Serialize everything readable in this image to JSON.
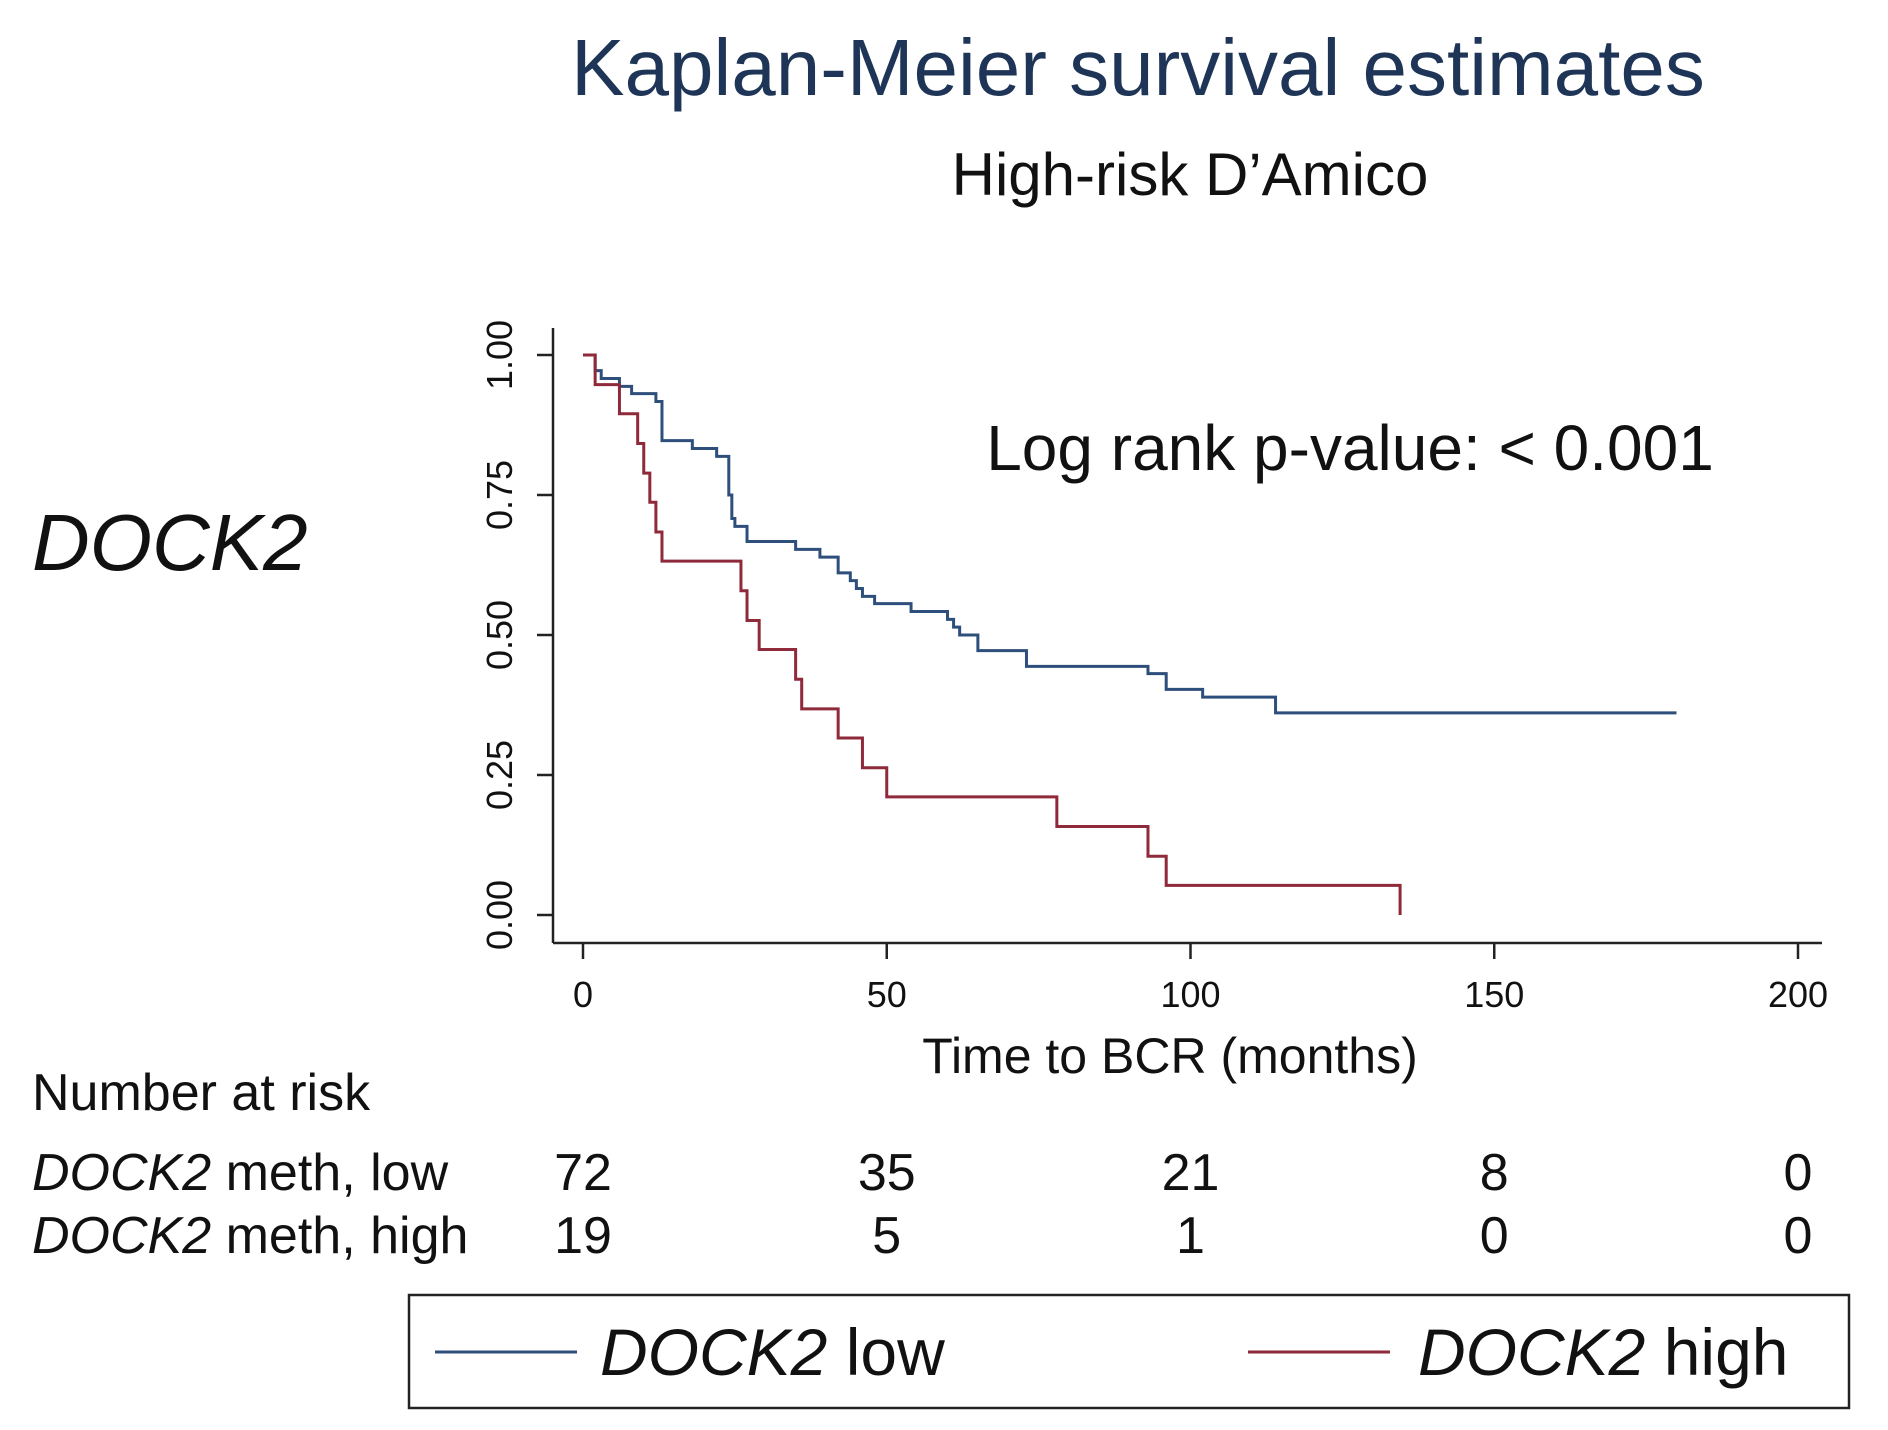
{
  "chart_data": {
    "type": "line",
    "title": "Kaplan-Meier survival estimates",
    "subtitle": "High-risk D’Amico",
    "gene_label": "DOCK2",
    "xlabel": "Time to BCR (months)",
    "ylabel": "",
    "xlim": [
      0,
      200
    ],
    "ylim": [
      0,
      1
    ],
    "x_ticks": [
      "0",
      "50",
      "100",
      "150",
      "200"
    ],
    "y_ticks": [
      "0.00",
      "0.25",
      "0.50",
      "0.75",
      "1.00"
    ],
    "grid": false,
    "annotation": "Log rank p-value: < 0.001",
    "series": [
      {
        "name": "DOCK2 low",
        "color": "#2e4f7c",
        "x": [
          0,
          2,
          3,
          6,
          8,
          12,
          13,
          18,
          22,
          24,
          24.5,
          25,
          27,
          35,
          39,
          42,
          44,
          45,
          46,
          48,
          54,
          60,
          61,
          62,
          65,
          73,
          93,
          96,
          102,
          114,
          180
        ],
        "y": [
          1.0,
          0.972,
          0.958,
          0.944,
          0.931,
          0.917,
          0.847,
          0.833,
          0.819,
          0.75,
          0.708,
          0.694,
          0.667,
          0.653,
          0.639,
          0.611,
          0.597,
          0.583,
          0.569,
          0.556,
          0.542,
          0.528,
          0.514,
          0.5,
          0.472,
          0.444,
          0.431,
          0.403,
          0.389,
          0.361,
          0.361
        ]
      },
      {
        "name": "DOCK2 high",
        "color": "#8e2a3a",
        "x": [
          0,
          2,
          6,
          9,
          10,
          11,
          12,
          13,
          26,
          27,
          29,
          35,
          36,
          42,
          46,
          50,
          78,
          93,
          96,
          134,
          134.5
        ],
        "y": [
          1.0,
          0.947,
          0.895,
          0.842,
          0.789,
          0.737,
          0.684,
          0.632,
          0.579,
          0.526,
          0.474,
          0.421,
          0.368,
          0.316,
          0.263,
          0.211,
          0.158,
          0.105,
          0.053,
          0.053,
          0.0
        ]
      }
    ],
    "risk_table": {
      "title": "Number at risk",
      "rows": [
        {
          "gene": "DOCK2",
          "label": " meth, low",
          "values": [
            "72",
            "35",
            "21",
            "8",
            "0"
          ]
        },
        {
          "gene": "DOCK2",
          "label": " meth, high",
          "values": [
            "19",
            "5",
            "1",
            "0",
            "0"
          ]
        }
      ]
    },
    "legend": {
      "position": "bottom",
      "items": [
        {
          "gene": "DOCK2",
          "suffix": " low",
          "color": "#2e4f7c"
        },
        {
          "gene": "DOCK2",
          "suffix": " high",
          "color": "#8e2a3a"
        }
      ]
    }
  }
}
